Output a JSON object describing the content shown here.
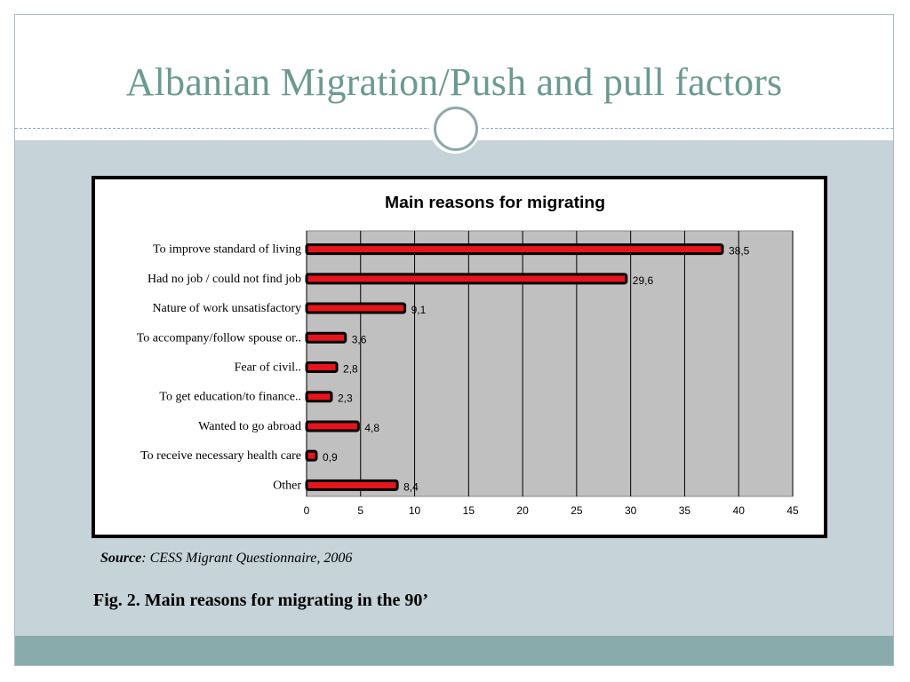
{
  "slide": {
    "title": "Albanian Migration/Push and pull factors",
    "source_label": "Source",
    "source_text": ": CESS Migrant Questionnaire, 2006",
    "caption": "Fig. 2. Main reasons for migrating in the 90’"
  },
  "colors": {
    "title": "#6b9a91",
    "background": "#c6d3d8",
    "bar_fill": "#e8141b",
    "bar_outline": "#000000",
    "plot_area": "#c0c0c0",
    "footer_band": "#8aabab"
  },
  "chart_data": {
    "type": "bar",
    "orientation": "horizontal",
    "title": "Main reasons for migrating",
    "categories": [
      "To improve standard of living",
      "Had no job / could not find job",
      "Nature of work unsatisfactory",
      "To accompany/follow spouse or..",
      "Fear of civil..",
      "To get education/to finance..",
      "Wanted to go abroad",
      "To receive necessary health care",
      "Other"
    ],
    "values": [
      38.5,
      29.6,
      9.1,
      3.6,
      2.8,
      2.3,
      4.8,
      0.9,
      8.4
    ],
    "value_labels": [
      "38,5",
      "29,6",
      "9,1",
      "3,6",
      "2,8",
      "2,3",
      "4,8",
      "0,9",
      "8,4"
    ],
    "xlim": [
      0,
      45
    ],
    "xticks": [
      0,
      5,
      10,
      15,
      20,
      25,
      30,
      35,
      40,
      45
    ],
    "grid": true,
    "legend": "none"
  }
}
